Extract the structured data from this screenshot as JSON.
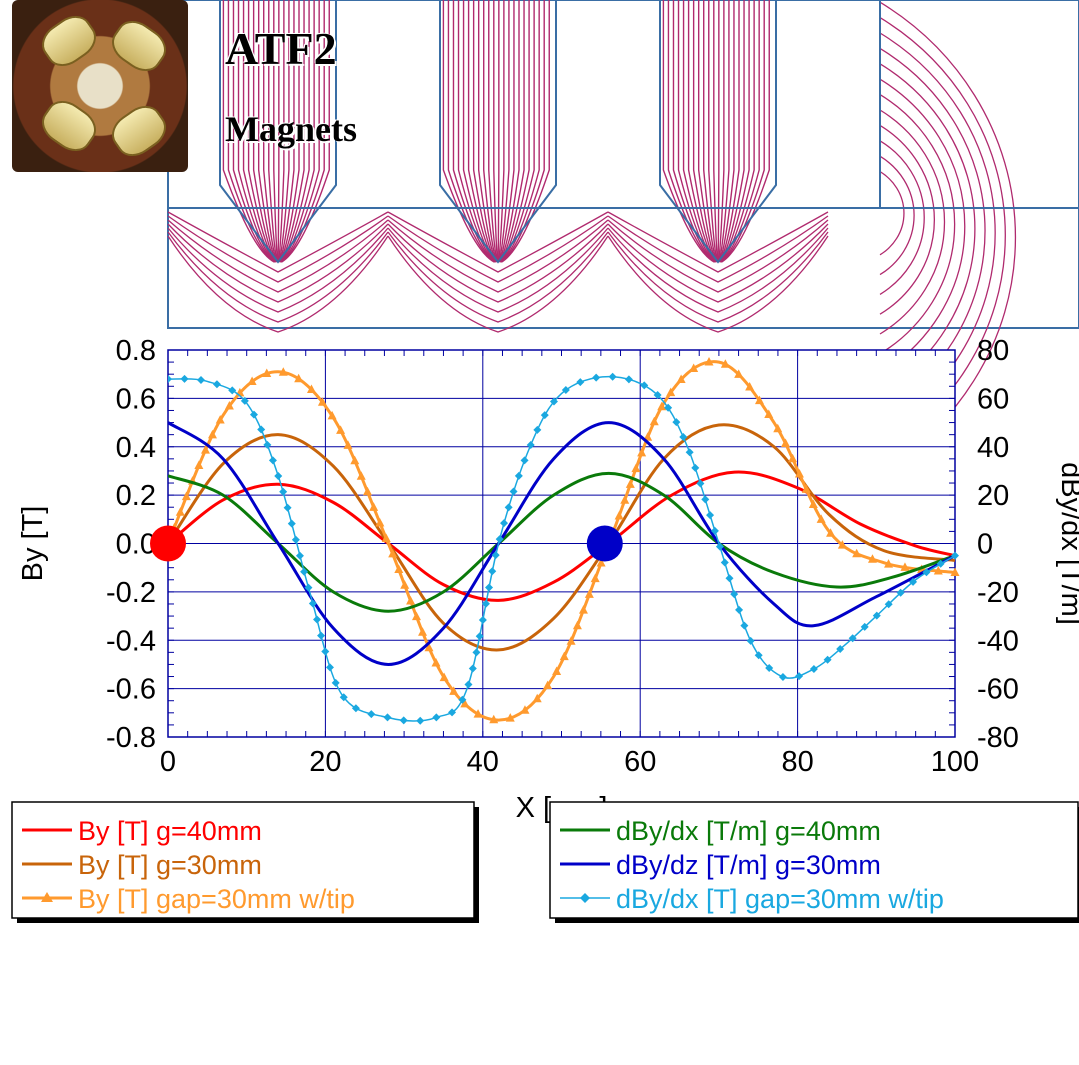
{
  "title": {
    "line1": "ATF2",
    "line2": "Magnets"
  },
  "icons": {
    "photo": "magnet-photo",
    "marker_red": "red-dot-marker",
    "marker_blue": "blue-dot-marker"
  },
  "chart_data": {
    "type": "line",
    "xlabel": "X [mm]",
    "ylabel": "By [T]",
    "y2label": "dBy/dx [T/m]",
    "xlim": [
      0,
      100
    ],
    "ylim": [
      -0.8,
      0.8
    ],
    "y2lim": [
      -80,
      80
    ],
    "grid": true,
    "x_ticks": [
      "0",
      "20",
      "40",
      "60",
      "80",
      "100"
    ],
    "y_ticks": [
      "-0.8",
      "-0.6",
      "-0.4",
      "-0.2",
      "0.0",
      "0.2",
      "0.4",
      "0.6",
      "0.8"
    ],
    "y2_ticks": [
      "-80",
      "-60",
      "-40",
      "-20",
      "0",
      "20",
      "40",
      "60",
      "80"
    ],
    "series": [
      {
        "name": "By [T] g=40mm",
        "axis": "left",
        "color": "#ff0000",
        "marker": "none",
        "x": [
          0,
          7,
          14,
          21,
          28,
          35,
          42,
          49,
          56,
          64,
          72,
          80,
          88,
          95,
          100
        ],
        "y": [
          0,
          0.18,
          0.245,
          0.17,
          0,
          -0.17,
          -0.235,
          -0.16,
          0,
          0.2,
          0.295,
          0.23,
          0.08,
          -0.01,
          -0.05
        ]
      },
      {
        "name": "By [T] g=30mm",
        "axis": "left",
        "color": "#c8640a",
        "marker": "none",
        "x": [
          0,
          7,
          14,
          21,
          28,
          35,
          42,
          49,
          56,
          63,
          70,
          77,
          84,
          91,
          100
        ],
        "y": [
          0,
          0.33,
          0.45,
          0.32,
          0,
          -0.33,
          -0.44,
          -0.31,
          0,
          0.35,
          0.49,
          0.4,
          0.12,
          -0.03,
          -0.07
        ]
      },
      {
        "name": "By [T] gap=30mm w/tip",
        "axis": "left",
        "color": "#ff9a2e",
        "marker": "triangle",
        "x": [
          0,
          7,
          14,
          21,
          28,
          35,
          42,
          49,
          56,
          63,
          70,
          77,
          84,
          91,
          100
        ],
        "y": [
          0,
          0.53,
          0.71,
          0.52,
          0,
          -0.55,
          -0.73,
          -0.55,
          0,
          0.58,
          0.75,
          0.5,
          0.05,
          -0.08,
          -0.12
        ]
      },
      {
        "name": "dBy/dx [T/m] g=40mm",
        "axis": "right",
        "color": "#0a7a0a",
        "marker": "none",
        "x": [
          0,
          7,
          14,
          21,
          28,
          35,
          42,
          49,
          56,
          63,
          70,
          77,
          85,
          92,
          100
        ],
        "y": [
          28,
          20,
          0,
          -20,
          -28,
          -20,
          0,
          20,
          29,
          20,
          0,
          -12,
          -18,
          -14,
          -5
        ]
      },
      {
        "name": "dBy/dz [T/m] g=30mm",
        "axis": "right",
        "color": "#0000c8",
        "marker": "none",
        "x": [
          0,
          7,
          14,
          21,
          28,
          35,
          42,
          49,
          56,
          63,
          70,
          77,
          82,
          90,
          100
        ],
        "y": [
          50,
          35,
          0,
          -35,
          -50,
          -35,
          0,
          35,
          50,
          35,
          0,
          -25,
          -34,
          -22,
          -5
        ]
      },
      {
        "name": "dBy/dx [T] gap=30mm w/tip",
        "axis": "right",
        "color": "#1aa8e0",
        "marker": "diamond",
        "x": [
          0,
          5,
          10,
          14,
          18,
          22,
          28,
          34,
          38,
          42,
          46,
          50,
          56,
          62,
          66,
          70,
          74,
          78,
          82,
          86,
          90,
          95,
          100
        ],
        "y": [
          68,
          67,
          58,
          28,
          -20,
          -62,
          -72,
          -72,
          -60,
          0,
          40,
          62,
          69,
          62,
          40,
          0,
          -40,
          -55,
          -52,
          -42,
          -30,
          -15,
          -5
        ]
      }
    ],
    "legend": [
      {
        "placement": "bottom-left",
        "entries": [
          "By [T] g=40mm",
          "By [T] g=30mm",
          "By [T] gap=30mm w/tip"
        ]
      },
      {
        "placement": "bottom-right",
        "entries": [
          "dBy/dx [T/m] g=40mm",
          "dBy/dz [T/m] g=30mm",
          "dBy/dx [T] gap=30mm w/tip"
        ]
      }
    ]
  }
}
